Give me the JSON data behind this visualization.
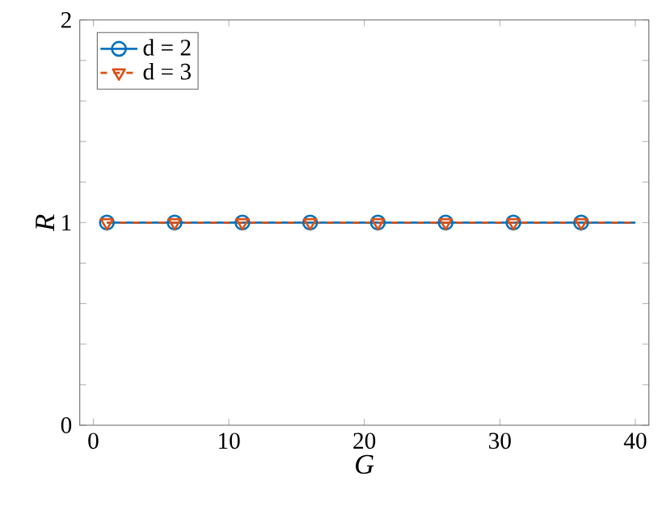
{
  "chart_data": {
    "type": "line",
    "xlabel": "G",
    "ylabel": "R",
    "xlim": [
      -1,
      41
    ],
    "ylim": [
      0,
      2
    ],
    "xticks": [
      0,
      10,
      20,
      30,
      40
    ],
    "yticks": [
      0,
      {
        "value": 0.2,
        "label": null
      },
      {
        "value": 0.4,
        "label": null
      },
      {
        "value": 0.6,
        "label": null
      },
      {
        "value": 0.8,
        "label": null
      },
      1,
      {
        "value": 1.2,
        "label": null
      },
      {
        "value": 1.4,
        "label": null
      },
      {
        "value": 1.6,
        "label": null
      },
      {
        "value": 1.8,
        "label": null
      },
      2
    ],
    "legend": "top left",
    "x": [
      1,
      6,
      11,
      16,
      21,
      26,
      31,
      36,
      40
    ],
    "series": [
      {
        "name": "d = 2",
        "color": "#0072bd",
        "marker": "circle",
        "line_style": "solid",
        "values": [
          1,
          1,
          1,
          1,
          1,
          1,
          1,
          1,
          1
        ]
      },
      {
        "name": "d = 3",
        "color": "#d95319",
        "marker": "triangle",
        "line_style": "dashed",
        "values": [
          1,
          1,
          1,
          1,
          1,
          1,
          1,
          1,
          1
        ]
      }
    ]
  }
}
